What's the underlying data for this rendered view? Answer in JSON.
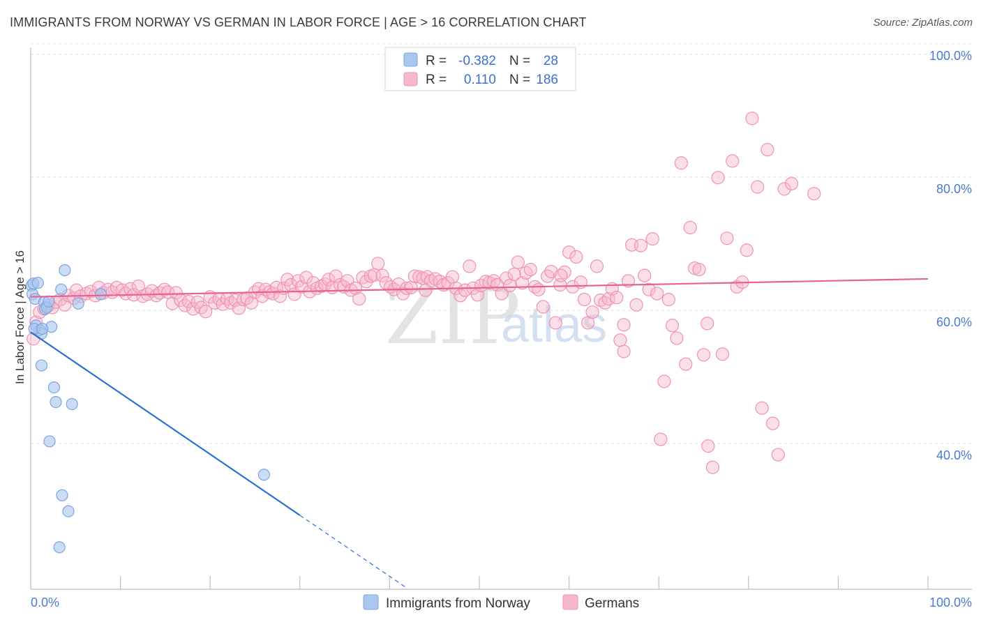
{
  "title": "IMMIGRANTS FROM NORWAY VS GERMAN IN LABOR FORCE | AGE > 16 CORRELATION CHART",
  "source": "Source: ZipAtlas.com",
  "watermark": {
    "zip": "ZIP",
    "atlas": "atlas"
  },
  "colors": {
    "norway_fill": "#a9c6ee",
    "norway_stroke": "#7aa5dd",
    "norway_line": "#2a6fd4",
    "german_fill": "#f6b8cc",
    "german_stroke": "#ee93b1",
    "german_line": "#e8628f",
    "grid": "#dddddd",
    "axis_text": "#4a7bd0"
  },
  "legend": {
    "rows": [
      {
        "r_label": "R =",
        "r_value": "-0.382",
        "n_label": "N =",
        "n_value": "28"
      },
      {
        "r_label": "R =",
        "r_value": "0.110",
        "n_label": "N =",
        "n_value": "186"
      }
    ]
  },
  "bottom_legend": {
    "norway": "Immigrants from Norway",
    "german": "Germans"
  },
  "chart_data": {
    "type": "scatter",
    "title": "IMMIGRANTS FROM NORWAY VS GERMAN IN LABOR FORCE | AGE > 16 CORRELATION CHART",
    "xlabel": "",
    "ylabel": "In Labor Force | Age > 16",
    "xlim": [
      0,
      100
    ],
    "ylim": [
      20,
      102
    ],
    "x_tick_labels": [
      "0.0%",
      "100.0%"
    ],
    "y_tick_values": [
      40,
      60,
      80,
      100
    ],
    "y_tick_labels": [
      "40.0%",
      "60.0%",
      "80.0%",
      "100.0%"
    ],
    "grid": true,
    "series": [
      {
        "name": "Immigrants from Norway",
        "R": -0.382,
        "N": 28,
        "trend": {
          "x0": 0,
          "y0": 58.5,
          "x1": 30,
          "y1": 31,
          "dashed_to_x": 42,
          "dashed_to_y": 20
        },
        "points": [
          [
            0.1,
            65.5
          ],
          [
            0.2,
            64.2
          ],
          [
            0.3,
            65.8
          ],
          [
            0.8,
            65.9
          ],
          [
            0.5,
            63.5
          ],
          [
            0.6,
            59.5
          ],
          [
            1.0,
            58.8
          ],
          [
            1.2,
            58.3
          ],
          [
            0.4,
            59.0
          ],
          [
            1.5,
            63.0
          ],
          [
            1.6,
            62.0
          ],
          [
            1.8,
            62.2
          ],
          [
            2.0,
            63.1
          ],
          [
            2.3,
            59.3
          ],
          [
            3.4,
            64.9
          ],
          [
            3.8,
            67.8
          ],
          [
            5.3,
            62.8
          ],
          [
            7.8,
            64.2
          ],
          [
            1.2,
            53.5
          ],
          [
            2.6,
            50.2
          ],
          [
            2.8,
            48.0
          ],
          [
            4.6,
            47.7
          ],
          [
            2.1,
            42.1
          ],
          [
            3.5,
            34.0
          ],
          [
            4.2,
            31.6
          ],
          [
            3.2,
            26.2
          ],
          [
            26.0,
            37.1
          ],
          [
            1.3,
            59.0
          ]
        ]
      },
      {
        "name": "Germans",
        "R": 0.11,
        "N": 186,
        "trend": {
          "x0": 0,
          "y0": 63.8,
          "x1": 100,
          "y1": 66.5
        },
        "points": [
          [
            0.3,
            57.5
          ],
          [
            0.6,
            60.0
          ],
          [
            1.0,
            61.5
          ],
          [
            1.5,
            62.0
          ],
          [
            2.0,
            62.5
          ],
          [
            2.4,
            62.2
          ],
          [
            2.8,
            63.0
          ],
          [
            3.3,
            63.4
          ],
          [
            3.8,
            62.6
          ],
          [
            4.2,
            64.0
          ],
          [
            4.8,
            63.6
          ],
          [
            5.1,
            64.8
          ],
          [
            5.6,
            63.9
          ],
          [
            6.2,
            64.3
          ],
          [
            6.7,
            64.6
          ],
          [
            7.2,
            64.0
          ],
          [
            7.6,
            65.2
          ],
          [
            8.1,
            64.4
          ],
          [
            8.6,
            64.9
          ],
          [
            9.1,
            64.5
          ],
          [
            9.6,
            65.2
          ],
          [
            10.2,
            64.8
          ],
          [
            10.6,
            64.3
          ],
          [
            11.1,
            65.0
          ],
          [
            11.5,
            64.1
          ],
          [
            12.0,
            65.4
          ],
          [
            12.5,
            63.9
          ],
          [
            13.0,
            64.2
          ],
          [
            13.5,
            64.7
          ],
          [
            14.0,
            64.0
          ],
          [
            14.4,
            64.4
          ],
          [
            14.9,
            64.9
          ],
          [
            15.3,
            64.5
          ],
          [
            15.8,
            62.8
          ],
          [
            16.2,
            64.4
          ],
          [
            16.7,
            63.3
          ],
          [
            17.2,
            62.5
          ],
          [
            17.6,
            63.1
          ],
          [
            18.1,
            62.0
          ],
          [
            18.6,
            63.0
          ],
          [
            19.0,
            62.2
          ],
          [
            19.5,
            61.6
          ],
          [
            20.0,
            63.8
          ],
          [
            20.5,
            62.9
          ],
          [
            21.0,
            63.5
          ],
          [
            21.4,
            62.7
          ],
          [
            21.9,
            63.5
          ],
          [
            22.3,
            62.9
          ],
          [
            22.8,
            63.3
          ],
          [
            23.2,
            62.1
          ],
          [
            23.7,
            63.4
          ],
          [
            24.1,
            63.6
          ],
          [
            24.6,
            62.9
          ],
          [
            25.0,
            64.5
          ],
          [
            25.4,
            65.0
          ],
          [
            25.8,
            63.9
          ],
          [
            26.2,
            64.9
          ],
          [
            26.6,
            64.5
          ],
          [
            27.0,
            64.3
          ],
          [
            27.4,
            65.2
          ],
          [
            27.8,
            63.9
          ],
          [
            28.2,
            65.1
          ],
          [
            28.6,
            66.4
          ],
          [
            29.0,
            65.6
          ],
          [
            29.4,
            64.2
          ],
          [
            29.8,
            66.2
          ],
          [
            30.2,
            65.3
          ],
          [
            30.7,
            66.7
          ],
          [
            31.1,
            64.6
          ],
          [
            31.5,
            65.9
          ],
          [
            31.9,
            65.1
          ],
          [
            32.4,
            65.4
          ],
          [
            32.8,
            65.7
          ],
          [
            33.2,
            66.4
          ],
          [
            33.6,
            65.2
          ],
          [
            34.0,
            66.9
          ],
          [
            34.5,
            65.6
          ],
          [
            34.9,
            65.3
          ],
          [
            35.3,
            66.2
          ],
          [
            35.7,
            64.8
          ],
          [
            36.2,
            65.1
          ],
          [
            36.6,
            63.5
          ],
          [
            37.0,
            66.7
          ],
          [
            37.4,
            66.1
          ],
          [
            37.9,
            66.9
          ],
          [
            38.3,
            67.1
          ],
          [
            38.7,
            68.8
          ],
          [
            39.2,
            67.0
          ],
          [
            39.6,
            65.9
          ],
          [
            40.1,
            65.3
          ],
          [
            40.5,
            64.9
          ],
          [
            41.0,
            65.7
          ],
          [
            41.5,
            64.3
          ],
          [
            41.9,
            65.1
          ],
          [
            42.4,
            65.2
          ],
          [
            42.8,
            66.9
          ],
          [
            43.3,
            66.8
          ],
          [
            43.7,
            66.6
          ],
          [
            44.2,
            66.8
          ],
          [
            44.6,
            66.2
          ],
          [
            45.1,
            66.5
          ],
          [
            45.6,
            66.1
          ],
          [
            46.0,
            65.6
          ],
          [
            46.5,
            65.9
          ],
          [
            47.0,
            66.8
          ],
          [
            47.4,
            65.1
          ],
          [
            47.9,
            64.0
          ],
          [
            48.4,
            64.8
          ],
          [
            48.9,
            68.4
          ],
          [
            49.3,
            65.1
          ],
          [
            49.8,
            64.1
          ],
          [
            50.2,
            65.5
          ],
          [
            50.7,
            66.1
          ],
          [
            51.1,
            65.9
          ],
          [
            51.6,
            66.2
          ],
          [
            52.0,
            65.6
          ],
          [
            52.5,
            64.3
          ],
          [
            53.0,
            66.6
          ],
          [
            53.4,
            65.5
          ],
          [
            53.9,
            67.2
          ],
          [
            54.3,
            69.0
          ],
          [
            54.8,
            65.9
          ],
          [
            55.2,
            67.4
          ],
          [
            55.7,
            67.9
          ],
          [
            56.2,
            65.3
          ],
          [
            56.6,
            64.9
          ],
          [
            57.1,
            62.3
          ],
          [
            57.6,
            66.9
          ],
          [
            58.0,
            67.6
          ],
          [
            58.5,
            59.9
          ],
          [
            59.0,
            65.6
          ],
          [
            59.5,
            67.5
          ],
          [
            60.0,
            70.5
          ],
          [
            60.4,
            65.3
          ],
          [
            60.8,
            69.8
          ],
          [
            61.3,
            66.0
          ],
          [
            61.7,
            63.4
          ],
          [
            62.1,
            59.9
          ],
          [
            62.6,
            61.5
          ],
          [
            63.1,
            68.4
          ],
          [
            63.5,
            63.3
          ],
          [
            64.0,
            62.9
          ],
          [
            64.4,
            63.5
          ],
          [
            64.8,
            65.0
          ],
          [
            65.3,
            63.7
          ],
          [
            65.7,
            57.3
          ],
          [
            66.1,
            55.6
          ],
          [
            66.6,
            66.2
          ],
          [
            67.0,
            71.6
          ],
          [
            67.5,
            62.6
          ],
          [
            68.0,
            71.5
          ],
          [
            68.4,
            67.0
          ],
          [
            68.9,
            64.9
          ],
          [
            69.3,
            72.5
          ],
          [
            69.8,
            64.3
          ],
          [
            70.2,
            42.4
          ],
          [
            70.6,
            51.1
          ],
          [
            71.1,
            63.4
          ],
          [
            71.5,
            59.5
          ],
          [
            72.0,
            57.6
          ],
          [
            72.5,
            83.9
          ],
          [
            73.0,
            53.7
          ],
          [
            73.5,
            74.2
          ],
          [
            74.0,
            68.1
          ],
          [
            74.5,
            67.9
          ],
          [
            75.0,
            55.1
          ],
          [
            75.5,
            41.4
          ],
          [
            76.0,
            38.2
          ],
          [
            76.6,
            81.7
          ],
          [
            77.1,
            55.2
          ],
          [
            77.6,
            72.6
          ],
          [
            78.2,
            84.2
          ],
          [
            78.7,
            65.3
          ],
          [
            79.3,
            66.0
          ],
          [
            79.8,
            70.8
          ],
          [
            80.4,
            90.6
          ],
          [
            81.0,
            80.3
          ],
          [
            81.5,
            47.1
          ],
          [
            82.1,
            85.9
          ],
          [
            82.7,
            44.8
          ],
          [
            83.3,
            40.1
          ],
          [
            84.0,
            80.0
          ],
          [
            84.8,
            80.8
          ],
          [
            87.3,
            79.3
          ],
          [
            66.1,
            59.6
          ],
          [
            75.4,
            59.8
          ],
          [
            59.1,
            67.0
          ],
          [
            44.0,
            64.8
          ]
        ]
      }
    ]
  }
}
